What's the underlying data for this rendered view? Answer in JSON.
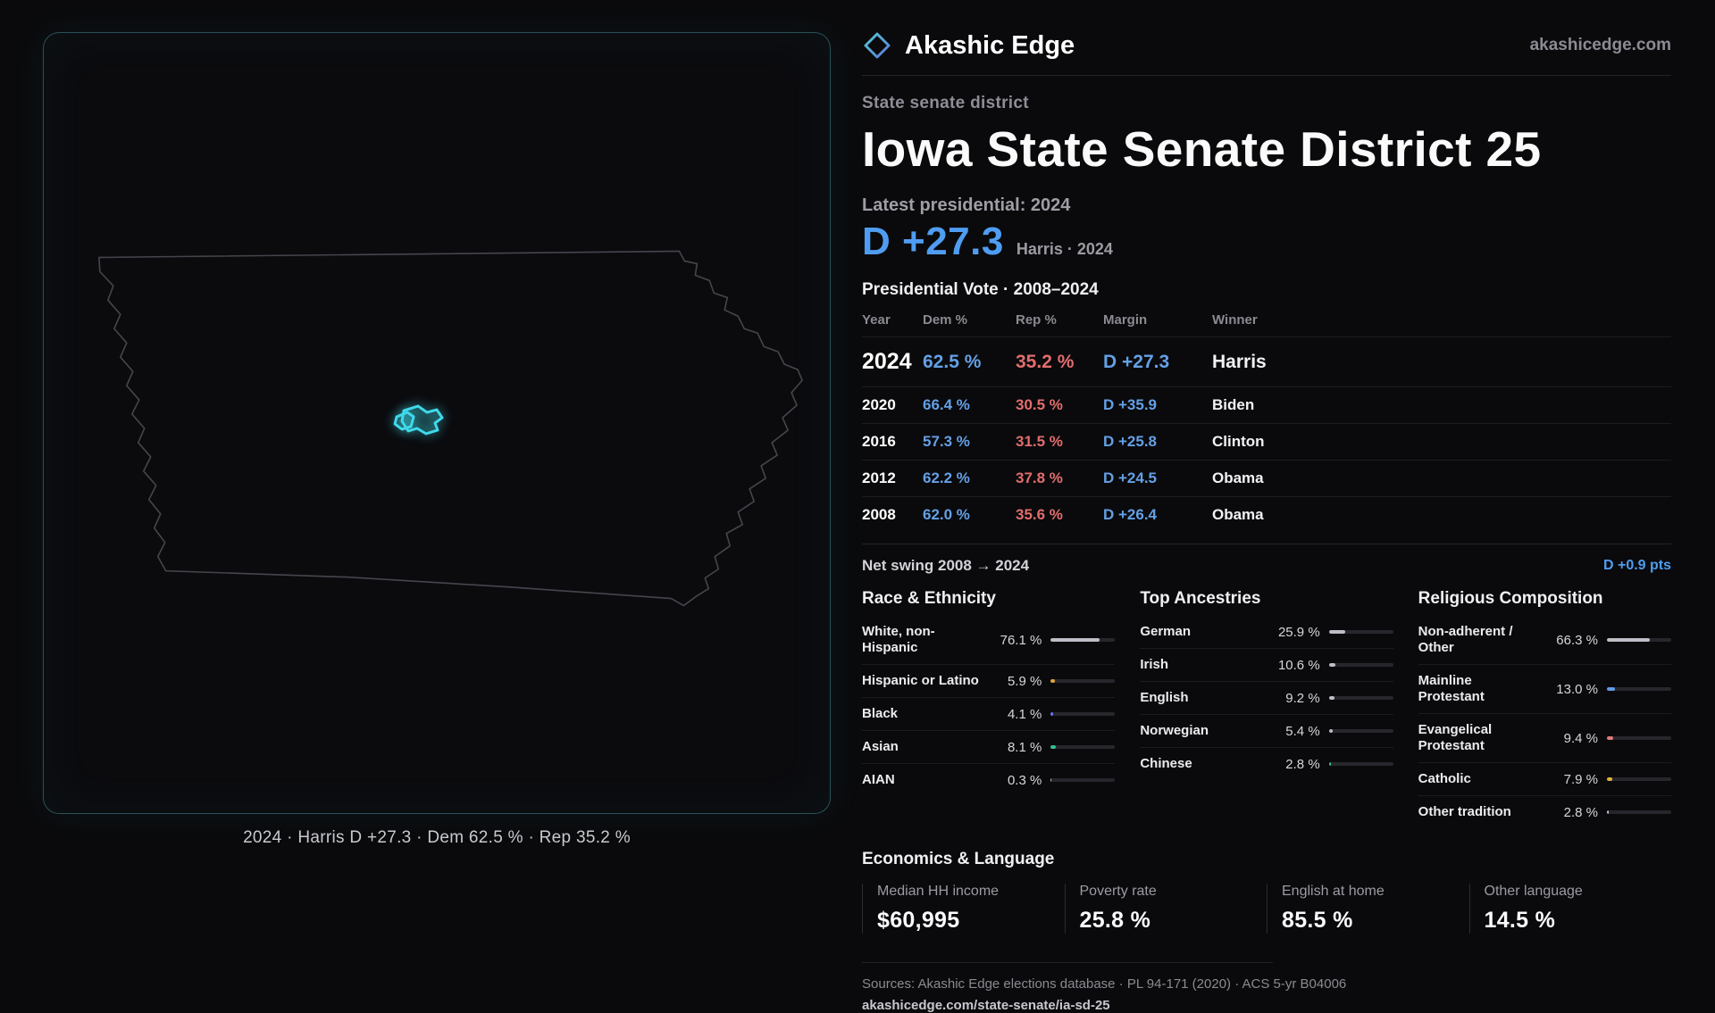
{
  "colors": {
    "dem": "#64a0e6",
    "rep": "#e26d6d",
    "accent": "#4f9df2",
    "district": "#3fd9ea"
  },
  "brand": {
    "name": "Akashic Edge",
    "domain": "akashicedge.com"
  },
  "page": {
    "eyebrow": "State senate district",
    "title": "Iowa State Senate District 25",
    "latest_label": "Latest presidential: 2024",
    "headline_margin": "D +27.3",
    "headline_sub": "Harris · 2024"
  },
  "map": {
    "caption": "2024 · Harris D +27.3 · Dem 62.5 % · Rep 35.2 %"
  },
  "vote_table": {
    "title": "Presidential Vote · 2008–2024",
    "columns": [
      "Year",
      "Dem %",
      "Rep %",
      "Margin",
      "Winner"
    ],
    "rows": [
      {
        "year": "2024",
        "dem": "62.5 %",
        "rep": "35.2 %",
        "margin": "D +27.3",
        "winner": "Harris"
      },
      {
        "year": "2020",
        "dem": "66.4 %",
        "rep": "30.5 %",
        "margin": "D +35.9",
        "winner": "Biden"
      },
      {
        "year": "2016",
        "dem": "57.3 %",
        "rep": "31.5 %",
        "margin": "D +25.8",
        "winner": "Clinton"
      },
      {
        "year": "2012",
        "dem": "62.2 %",
        "rep": "37.8 %",
        "margin": "D +24.5",
        "winner": "Obama"
      },
      {
        "year": "2008",
        "dem": "62.0 %",
        "rep": "35.6 %",
        "margin": "D +26.4",
        "winner": "Obama"
      }
    ]
  },
  "net_swing": {
    "label": "Net swing 2008 → 2024",
    "value": "D +0.9 pts"
  },
  "demographics": {
    "sections": [
      {
        "title": "Race & Ethnicity",
        "rows": [
          {
            "label": "White, non-Hispanic",
            "value": "76.1 %",
            "pct": 76.1,
            "color": "#bdbec6"
          },
          {
            "label": "Hispanic or Latino",
            "value": "5.9 %",
            "pct": 5.9,
            "color": "#e0a33c"
          },
          {
            "label": "Black",
            "value": "4.1 %",
            "pct": 4.1,
            "color": "#6f74e0"
          },
          {
            "label": "Asian",
            "value": "8.1 %",
            "pct": 8.1,
            "color": "#35c08e"
          },
          {
            "label": "AIAN",
            "value": "0.3 %",
            "pct": 0.3,
            "color": "#bdbec6"
          }
        ]
      },
      {
        "title": "Top Ancestries",
        "rows": [
          {
            "label": "German",
            "value": "25.9 %",
            "pct": 25.9,
            "color": "#bdbec6"
          },
          {
            "label": "Irish",
            "value": "10.6 %",
            "pct": 10.6,
            "color": "#bdbec6"
          },
          {
            "label": "English",
            "value": "9.2 %",
            "pct": 9.2,
            "color": "#bdbec6"
          },
          {
            "label": "Norwegian",
            "value": "5.4 %",
            "pct": 5.4,
            "color": "#bdbec6"
          },
          {
            "label": "Chinese",
            "value": "2.8 %",
            "pct": 2.8,
            "color": "#35c08e"
          }
        ]
      },
      {
        "title": "Religious Composition",
        "rows": [
          {
            "label": "Non-adherent / Other",
            "value": "66.3 %",
            "pct": 66.3,
            "color": "#bdbec6"
          },
          {
            "label": "Mainline Protestant",
            "value": "13.0 %",
            "pct": 13.0,
            "color": "#5e9de6"
          },
          {
            "label": "Evangelical Protestant",
            "value": "9.4 %",
            "pct": 9.4,
            "color": "#e07a7a"
          },
          {
            "label": "Catholic",
            "value": "7.9 %",
            "pct": 7.9,
            "color": "#e0b43c"
          },
          {
            "label": "Other tradition",
            "value": "2.8 %",
            "pct": 2.8,
            "color": "#bdbec6"
          }
        ]
      }
    ]
  },
  "economics": {
    "title": "Economics & Language",
    "stats": [
      {
        "label": "Median HH income",
        "value": "$60,995"
      },
      {
        "label": "Poverty rate",
        "value": "25.8 %"
      },
      {
        "label": "English at home",
        "value": "85.5 %"
      },
      {
        "label": "Other language",
        "value": "14.5 %"
      }
    ]
  },
  "footer": {
    "sources": "Sources: Akashic Edge elections database · PL 94-171 (2020) · ACS 5-yr B04006",
    "permalink": "akashicedge.com/state-senate/ia-sd-25"
  }
}
